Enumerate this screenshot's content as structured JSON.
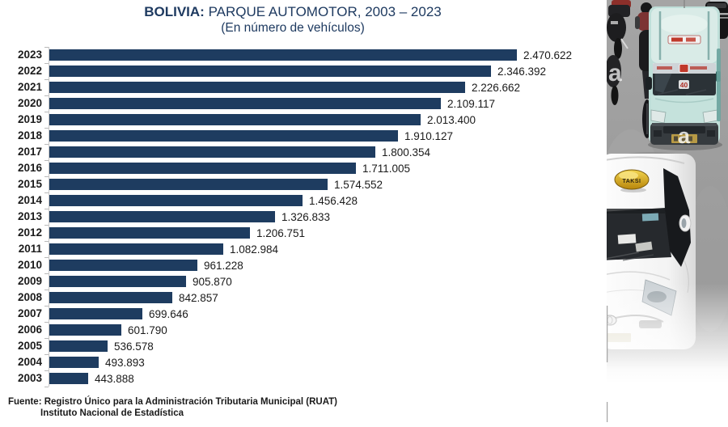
{
  "header": {
    "title_bold": "BOLIVIA:",
    "title_rest": " PARQUE AUTOMOTOR, 2003 – 2023",
    "subtitle": "(En número de vehículos)"
  },
  "source": {
    "line1": "Fuente: Registro Único para la Administración Tributaria Municipal (RUAT)",
    "line2": "Instituto Nacional de Estadística"
  },
  "chart_data": {
    "type": "bar",
    "orientation": "horizontal",
    "title": "BOLIVIA: PARQUE AUTOMOTOR, 2003 – 2023",
    "subtitle": "(En número de vehículos)",
    "xlabel": "",
    "ylabel": "",
    "grid": false,
    "legend": false,
    "bar_color": "#1e3c60",
    "axis_color": "#c9c9c9",
    "tick_color": "#b9b9b9",
    "categories": [
      "2023",
      "2022",
      "2021",
      "2020",
      "2019",
      "2018",
      "2017",
      "2016",
      "2015",
      "2014",
      "2013",
      "2012",
      "2011",
      "2010",
      "2009",
      "2008",
      "2007",
      "2006",
      "2005",
      "2004",
      "2003"
    ],
    "values": [
      2470622,
      2346392,
      2226662,
      2109117,
      2013400,
      1910127,
      1800354,
      1711005,
      1574552,
      1456428,
      1326833,
      1206751,
      1082984,
      961228,
      905870,
      842857,
      699646,
      601790,
      536578,
      493893,
      443888
    ],
    "value_labels": [
      "2.470.622",
      "2.346.392",
      "2.226.662",
      "2.109.117",
      "2.013.400",
      "1.910.127",
      "1.800.354",
      "1.711.005",
      "1.574.552",
      "1.456.428",
      "1.326.833",
      "1.206.751",
      "1.082.984",
      "961.228",
      "905.870",
      "842.857",
      "699.646",
      "601.790",
      "536.578",
      "493.893",
      "443.888"
    ]
  },
  "photo": {
    "taksi_sign_label": "TAKSI",
    "van_route_number": "40",
    "watermark_letter": "a",
    "road_color": "#9e9e9e",
    "van_color": "#bfdfd9"
  }
}
